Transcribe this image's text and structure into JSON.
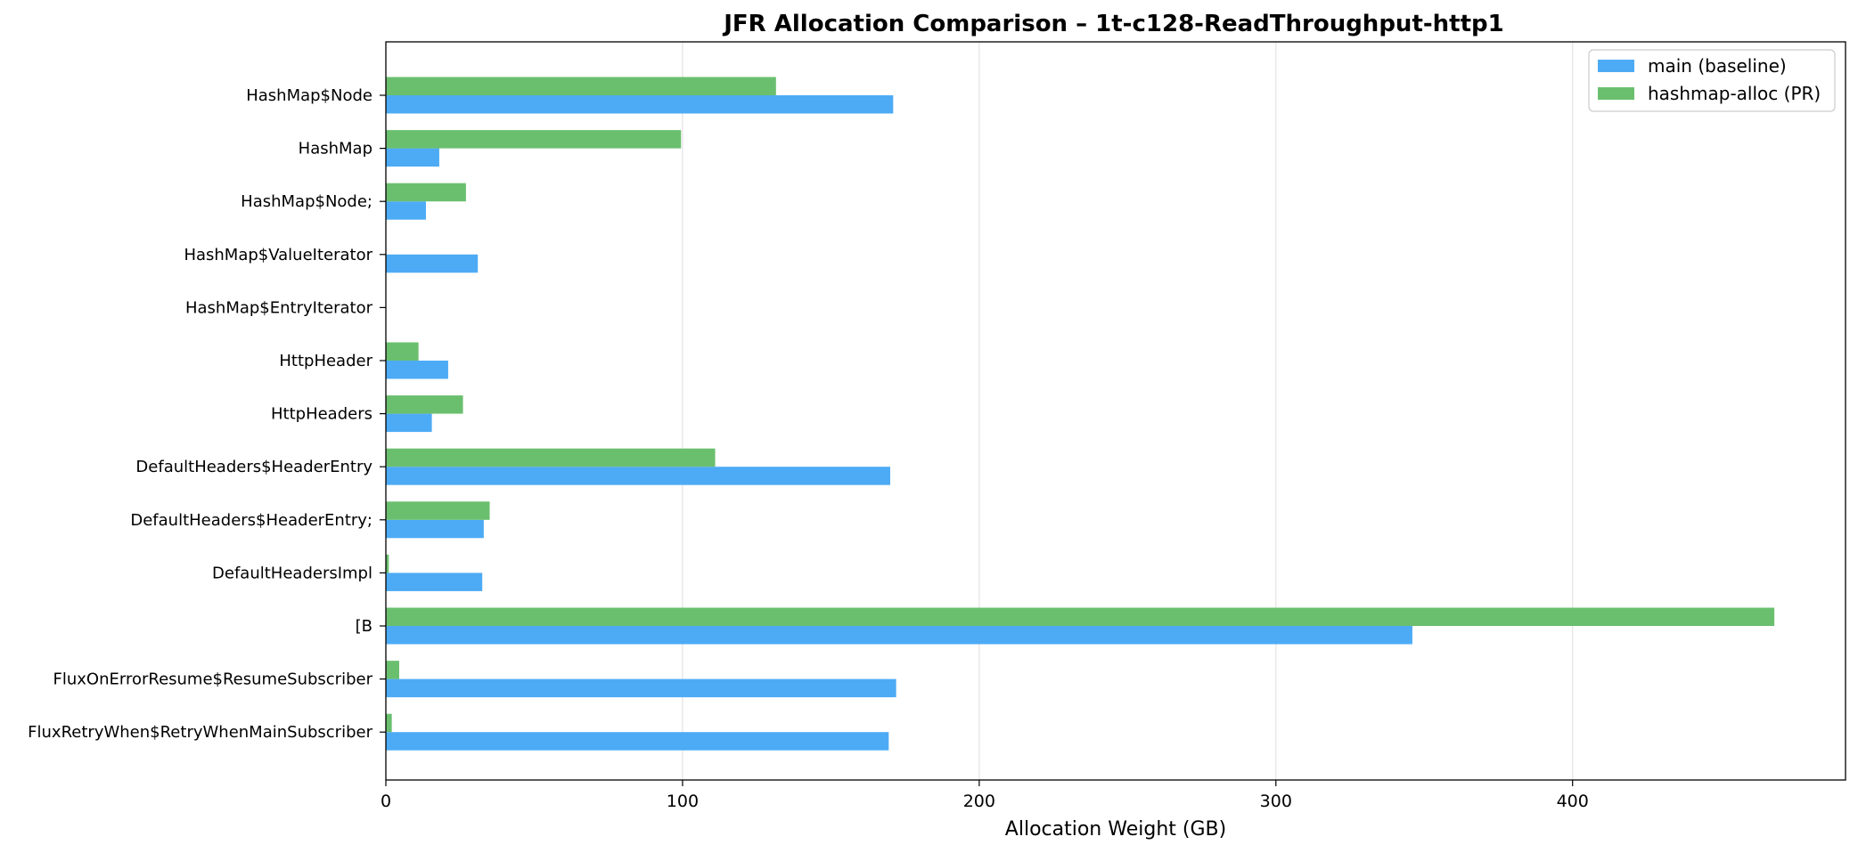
{
  "chart_data": {
    "type": "bar",
    "orientation": "horizontal",
    "title": "JFR Allocation Comparison – 1t-c128-ReadThroughput-http1",
    "xlabel": "Allocation Weight (GB)",
    "ylabel": "",
    "xlim": [
      0,
      492
    ],
    "xticks": [
      0,
      100,
      200,
      300,
      400
    ],
    "grid": "x",
    "legend_position": "top-right",
    "categories": [
      "HashMap$Node",
      "HashMap",
      "HashMap$Node;",
      "HashMap$ValueIterator",
      "HashMap$EntryIterator",
      "HttpHeader",
      "HttpHeaders",
      "DefaultHeaders$HeaderEntry",
      "DefaultHeaders$HeaderEntry;",
      "DefaultHeadersImpl",
      "[B",
      "FluxOnErrorResume$ResumeSubscriber",
      "FluxRetryWhen$RetryWhenMainSubscriber"
    ],
    "series": [
      {
        "name": "main (baseline)",
        "color": "#4DABF5",
        "values": [
          171,
          18,
          13.5,
          31,
          0,
          21,
          15.5,
          170,
          33,
          32.5,
          346,
          172,
          169.5
        ]
      },
      {
        "name": "hashmap-alloc (PR)",
        "color": "#6ABF6E",
        "values": [
          131.5,
          99.5,
          27,
          0,
          0,
          11,
          26,
          111,
          35,
          1,
          468,
          4.5,
          2
        ]
      }
    ]
  }
}
